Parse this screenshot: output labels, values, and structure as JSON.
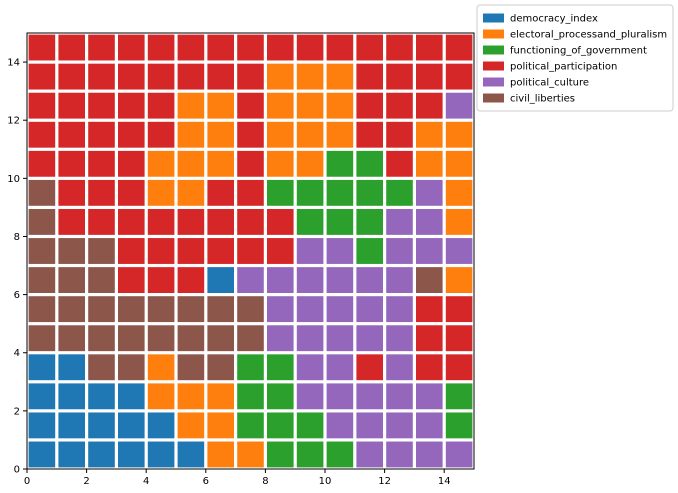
{
  "chart_data": {
    "type": "waffle",
    "grid": {
      "rows": 15,
      "cols": 15
    },
    "xlim": [
      0,
      15
    ],
    "ylim": [
      0,
      15
    ],
    "xticks": [
      0,
      2,
      4,
      6,
      8,
      10,
      12,
      14
    ],
    "yticks": [
      0,
      2,
      4,
      6,
      8,
      10,
      12,
      14
    ],
    "legend": {
      "placement": "outside-top-right"
    },
    "categories": [
      {
        "code": "D",
        "name": "democracy_index",
        "color": "#1f77b4"
      },
      {
        "code": "E",
        "name": "electoral_processand_pluralism",
        "color": "#ff7f0e"
      },
      {
        "code": "F",
        "name": "functioning_of_government",
        "color": "#2ca02c"
      },
      {
        "code": "P",
        "name": "political_participation",
        "color": "#d62728"
      },
      {
        "code": "C",
        "name": "political_culture",
        "color": "#9467bd"
      },
      {
        "code": "L",
        "name": "civil_liberties",
        "color": "#8c564b"
      }
    ],
    "cells_top_to_bottom": [
      "PPPPPPPPPPPPPPP",
      "PPPPPPPPEEEPPPP",
      "PPPPPEEPEEEPPPC",
      "PPPPPEEPEEEPPEE",
      "PPPPEEEPEEFFPEE",
      "LPPPEEPPFFFFFCE",
      "LPPPPPPPPFFFCCE",
      "LLLPPPPPPCCFCCC",
      "LLLPPPDCCCCCCLE",
      "LLLLLLLLCCCCCPP",
      "LLLLLLLLCCCCCPP",
      "DDLLELLFFCCPCPP",
      "DDDDEEEFFCCCCCF",
      "DDDDDEEFFFCCCCF",
      "DDDDDDEEFFFCCCC"
    ]
  }
}
